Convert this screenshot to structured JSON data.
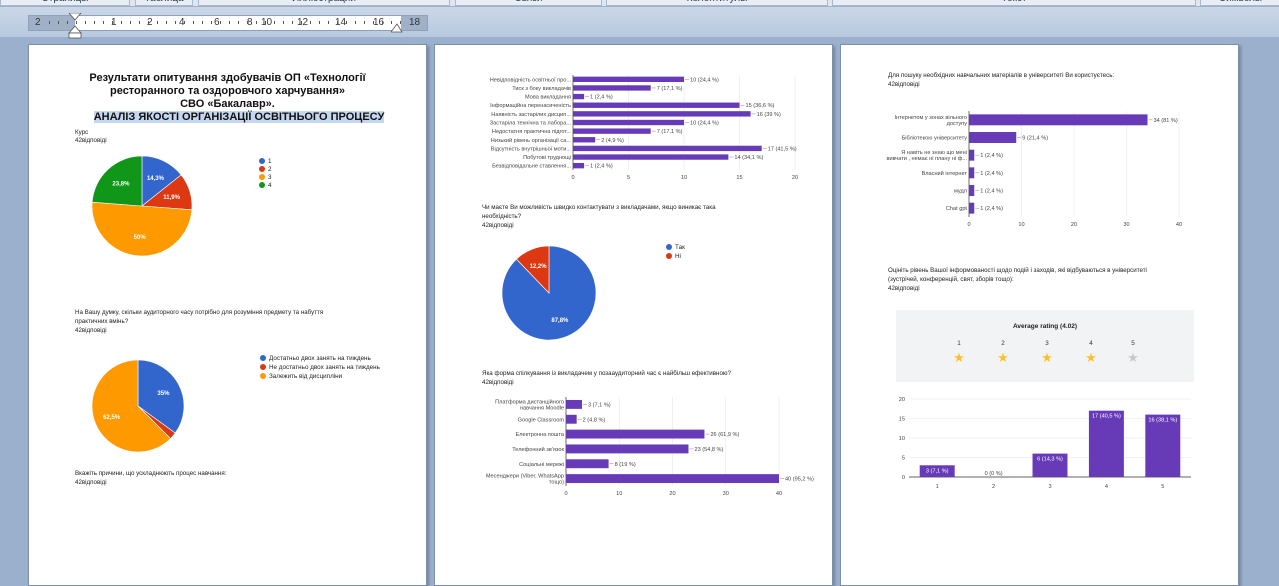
{
  "ribbon": {
    "groups": [
      "Страницы",
      "Таблица",
      "Иллюстрации",
      "Связи",
      "Колонтитулы",
      "Текст",
      "Символы"
    ]
  },
  "ruler": {
    "labels": [
      "2",
      "1",
      "2",
      "4",
      "6",
      "8",
      "10",
      "12",
      "14",
      "16",
      "18"
    ]
  },
  "colors": {
    "blue": "#3366cc",
    "red": "#dc3912",
    "orange": "#ff9900",
    "green": "#109618",
    "purple": "#673ab7",
    "grid": "#e6e6e6",
    "star_on": "#fbc02d",
    "star_off": "#c8c8c8"
  },
  "page1": {
    "title_line1": "Результати опитування здобувачів ОП «Технології",
    "title_line2": "ресторанного та оздоровчого харчування»",
    "title_line3": "СВО «Бакалавр».",
    "title_line4": "АНАЛІЗ ЯКОСТІ ОРГАНІЗАЦІЇ ОСВІТНЬОГО ПРОЦЕСУ",
    "q1_label": "Курс",
    "q1_count": "42відповіді",
    "q2_text_line1": "На Вашу думку, скільки аудиторного часу потрібно для розуміння предмету та набуття",
    "q2_text_line2": "практичних вмінь?",
    "q2_count": "42відповіді",
    "q3_text": "Вкажіть причини, що ускладнюють процес навчання:",
    "q3_count": "42відповіді"
  },
  "page2": {
    "q4_text_line1": "Чи маєте Ви можливість швидко контактувати з викладачами, якщо виникає така",
    "q4_text_line2": "необхідність?",
    "q4_count": "42відповіді",
    "q5_text": "Яка форма спілкування із викладачем у позааудиторний час є найбільш ефективною?",
    "q5_count": "42відповіді"
  },
  "page3": {
    "q6_text": "Для пошуку необхідних навчальних матеріалів в університеті Ви користуєтесь:",
    "q6_count": "42відповіді",
    "q7_text_line1": "Оцініть рівень Вашої інформованості щодо подій і заходів, які відбуваються в університеті",
    "q7_text_line2": "(зустрічей, конференцій, свят, зборів тощо):",
    "q7_count": "42відповіді",
    "rating_title": "Average rating (4.02)",
    "rating_labels": [
      "1",
      "2",
      "3",
      "4",
      "5"
    ],
    "rating_stars": [
      1,
      1,
      1,
      1,
      0
    ]
  },
  "chart_data": [
    {
      "id": "course",
      "type": "pie",
      "categories": [
        "1",
        "2",
        "3",
        "4"
      ],
      "values": [
        14.3,
        11.9,
        50,
        23.8
      ],
      "labels": [
        "14,3%",
        "11,9%",
        "50%",
        "23,8%"
      ],
      "legend_position": "right"
    },
    {
      "id": "time",
      "type": "pie",
      "categories": [
        "Достатньо двох занять на тиждень",
        "Не достатньо двох занять на тиждень",
        "Залежить від дисципліни"
      ],
      "values": [
        35,
        2.5,
        62.5
      ],
      "labels": [
        "35%",
        "",
        "62,5%"
      ],
      "legend_position": "right"
    },
    {
      "id": "reasons",
      "type": "bar",
      "orientation": "horizontal",
      "categories": [
        "Невідповідність освітньої про...",
        "Тиск з боку викладачів",
        "Мова викладання",
        "Інформаційна перенасиченість",
        "Наявність застарілих дисцип...",
        "Застаріла технічна та лабора...",
        "Недостатня практична підгот...",
        "Низький рівень організації са...",
        "Відсутність внутрішньої моти...",
        "Побутові труднощі",
        "Безвідповідальне ставлення..."
      ],
      "values": [
        10,
        7,
        1,
        15,
        16,
        10,
        7,
        2,
        17,
        14,
        1
      ],
      "labels": [
        "10 (24,4 %)",
        "7 (17,1 %)",
        "1 (2,4 %)",
        "15 (36,6 %)",
        "16 (39 %)",
        "10 (24,4 %)",
        "7 (17,1 %)",
        "2 (4,9 %)",
        "17 (41,5 %)",
        "14 (34,1 %)",
        "1 (2,4 %)"
      ],
      "xlim": [
        0,
        20
      ],
      "xticks": [
        "0",
        "5",
        "10",
        "15",
        "20"
      ]
    },
    {
      "id": "contact",
      "type": "pie",
      "categories": [
        "Так",
        "Ні"
      ],
      "values": [
        87.8,
        12.2
      ],
      "labels": [
        "87,8%",
        "12,2%"
      ],
      "legend_position": "right"
    },
    {
      "id": "communication",
      "type": "bar",
      "orientation": "horizontal",
      "categories": [
        "Платформа дистанційного навчання Moodle",
        "Google Classroom",
        "Електронна пошта",
        "Телефонний зв'язок",
        "Соціальні мережі",
        "Месенджери (Viber, WhatsApp тощо)"
      ],
      "values": [
        3,
        2,
        26,
        23,
        8,
        40
      ],
      "labels": [
        "3 (7,1 %)",
        "2 (4,8 %)",
        "26 (61,9 %)",
        "23 (54,8 %)",
        "8 (19 %)",
        "40 (95,2 %)"
      ],
      "xlim": [
        0,
        40
      ],
      "xticks": [
        "0",
        "10",
        "20",
        "30",
        "40"
      ]
    },
    {
      "id": "materials",
      "type": "bar",
      "orientation": "horizontal",
      "categories": [
        "Інтернетом у зонах вільного доступу",
        "Бібліотекою університету",
        "Я навіть не знаю що мені вивчати , немає ні плану ні ф...",
        "Власний інтернет",
        "мудл",
        "Chat gpt"
      ],
      "values": [
        34,
        9,
        1,
        1,
        1,
        1
      ],
      "labels": [
        "34 (81 %)",
        "9 (21,4 %)",
        "1 (2,4 %)",
        "1 (2,4 %)",
        "1 (2,4 %)",
        "1 (2,4 %)"
      ],
      "xlim": [
        0,
        40
      ],
      "xticks": [
        "0",
        "10",
        "20",
        "30",
        "40"
      ]
    },
    {
      "id": "awareness",
      "type": "bar",
      "orientation": "vertical",
      "categories": [
        "1",
        "2",
        "3",
        "4",
        "5"
      ],
      "values": [
        3,
        0,
        6,
        17,
        16
      ],
      "labels": [
        "3 (7,1 %)",
        "0 (0 %)",
        "6 (14,3 %)",
        "17 (40,5 %)",
        "16 (38,1 %)"
      ],
      "ylim": [
        0,
        20
      ],
      "yticks": [
        "0",
        "5",
        "10",
        "15",
        "20"
      ]
    }
  ]
}
